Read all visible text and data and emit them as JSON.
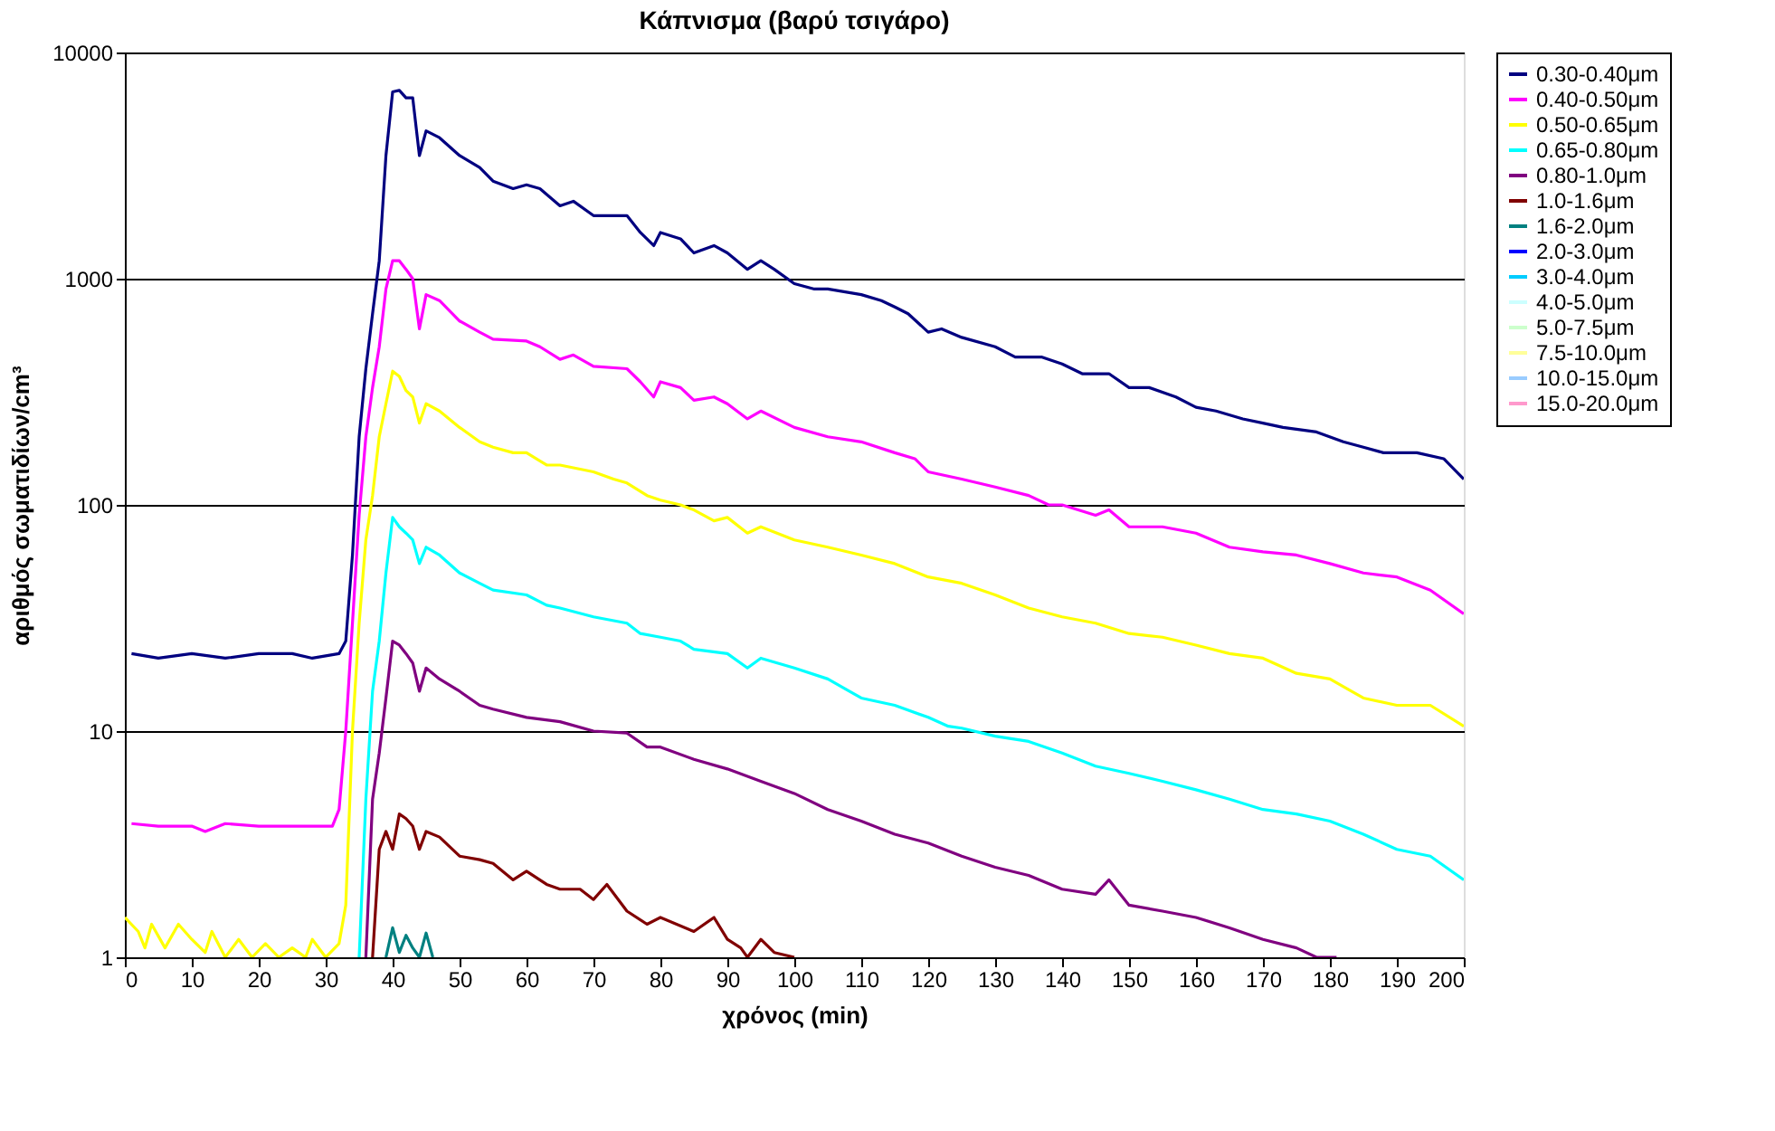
{
  "chart_data": {
    "type": "line",
    "title": "Κάπνισμα (βαρύ τσιγάρο)",
    "xlabel": "χρόνος (min)",
    "ylabel": "αριθμός σωματιδίων/cm³",
    "log": true,
    "grid": "y",
    "legend": "right",
    "line_style": "solid",
    "marker": "none",
    "xlim": [
      0,
      200
    ],
    "xticks": [
      0,
      10,
      20,
      30,
      40,
      50,
      60,
      70,
      80,
      90,
      100,
      110,
      120,
      130,
      140,
      150,
      160,
      170,
      180,
      190,
      200
    ],
    "ylim": [
      1,
      10000
    ],
    "yticks": [
      1,
      10,
      100,
      1000,
      10000
    ],
    "series": [
      {
        "name": "0.30-0.40μm",
        "color": "#000080",
        "x": [
          1,
          5,
          10,
          15,
          20,
          25,
          28,
          32,
          33,
          34,
          35,
          36,
          37,
          38,
          39,
          40,
          41,
          42,
          43,
          44,
          45,
          47,
          50,
          53,
          55,
          58,
          60,
          62,
          65,
          67,
          70,
          72,
          75,
          77,
          79,
          80,
          83,
          85,
          88,
          90,
          93,
          95,
          97,
          100,
          103,
          105,
          110,
          113,
          115,
          117,
          120,
          122,
          125,
          130,
          133,
          137,
          140,
          143,
          147,
          150,
          153,
          157,
          160,
          163,
          167,
          170,
          173,
          178,
          182,
          185,
          188,
          193,
          197,
          200
        ],
        "values": [
          22,
          21,
          22,
          21,
          22,
          22,
          21,
          22,
          25,
          60,
          200,
          400,
          700,
          1200,
          3500,
          6700,
          6800,
          6300,
          6300,
          3500,
          4500,
          4200,
          3500,
          3100,
          2700,
          2500,
          2600,
          2500,
          2100,
          2200,
          1900,
          1900,
          1900,
          1600,
          1400,
          1600,
          1500,
          1300,
          1400,
          1300,
          1100,
          1200,
          1100,
          950,
          900,
          900,
          850,
          800,
          750,
          700,
          580,
          600,
          550,
          500,
          450,
          450,
          420,
          380,
          380,
          330,
          330,
          300,
          270,
          260,
          240,
          230,
          220,
          210,
          190,
          180,
          170,
          170,
          160,
          130
        ]
      },
      {
        "name": "0.40-0.50μm",
        "color": "#ff00ff",
        "x": [
          1,
          5,
          10,
          12,
          15,
          20,
          25,
          31,
          32,
          33,
          34,
          35,
          36,
          37,
          38,
          39,
          40,
          41,
          42,
          43,
          44,
          45,
          47,
          50,
          53,
          55,
          60,
          62,
          65,
          67,
          70,
          75,
          77,
          79,
          80,
          83,
          85,
          88,
          90,
          93,
          95,
          100,
          105,
          110,
          115,
          118,
          120,
          125,
          130,
          135,
          138,
          140,
          145,
          147,
          150,
          155,
          160,
          165,
          170,
          175,
          180,
          185,
          190,
          195,
          200
        ],
        "values": [
          3.9,
          3.8,
          3.8,
          3.6,
          3.9,
          3.8,
          3.8,
          3.8,
          4.5,
          10,
          30,
          90,
          200,
          330,
          500,
          900,
          1200,
          1200,
          1100,
          1000,
          600,
          850,
          800,
          650,
          580,
          540,
          530,
          500,
          440,
          460,
          410,
          400,
          350,
          300,
          350,
          330,
          290,
          300,
          280,
          240,
          260,
          220,
          200,
          190,
          170,
          160,
          140,
          130,
          120,
          110,
          100,
          100,
          90,
          95,
          80,
          80,
          75,
          65,
          62,
          60,
          55,
          50,
          48,
          42,
          33
        ]
      },
      {
        "name": "0.50-0.65μm",
        "color": "#ffff00",
        "x": [
          0,
          2,
          3,
          4,
          6,
          8,
          10,
          12,
          13,
          15,
          17,
          19,
          21,
          23,
          25,
          27,
          28,
          30,
          32,
          33,
          34,
          35,
          36,
          37,
          38,
          39,
          40,
          41,
          42,
          43,
          44,
          45,
          47,
          50,
          53,
          55,
          58,
          60,
          63,
          65,
          70,
          73,
          75,
          78,
          80,
          83,
          85,
          88,
          90,
          93,
          95,
          100,
          105,
          110,
          115,
          120,
          125,
          130,
          135,
          140,
          145,
          150,
          155,
          160,
          165,
          170,
          175,
          180,
          185,
          190,
          195,
          200
        ],
        "values": [
          1.5,
          1.3,
          1.1,
          1.4,
          1.1,
          1.4,
          1.2,
          1.05,
          1.3,
          1.0,
          1.2,
          1.0,
          1.15,
          1.0,
          1.1,
          1.0,
          1.2,
          1.0,
          1.15,
          1.7,
          10,
          30,
          70,
          110,
          200,
          280,
          390,
          370,
          320,
          300,
          230,
          280,
          260,
          220,
          190,
          180,
          170,
          170,
          150,
          150,
          140,
          130,
          125,
          110,
          105,
          100,
          95,
          85,
          88,
          75,
          80,
          70,
          65,
          60,
          55,
          48,
          45,
          40,
          35,
          32,
          30,
          27,
          26,
          24,
          22,
          21,
          18,
          17,
          14,
          13,
          13,
          10.5
        ]
      },
      {
        "name": "0.65-0.80μm",
        "color": "#00ffff",
        "x": [
          35,
          36,
          37,
          38,
          39,
          40,
          41,
          42,
          43,
          44,
          45,
          47,
          50,
          53,
          55,
          60,
          63,
          65,
          70,
          75,
          77,
          80,
          83,
          85,
          90,
          93,
          95,
          100,
          105,
          110,
          115,
          120,
          123,
          125,
          130,
          135,
          140,
          145,
          150,
          155,
          160,
          165,
          170,
          175,
          180,
          185,
          190,
          195,
          200
        ],
        "values": [
          1,
          5,
          15,
          25,
          50,
          88,
          80,
          75,
          70,
          55,
          65,
          60,
          50,
          45,
          42,
          40,
          36,
          35,
          32,
          30,
          27,
          26,
          25,
          23,
          22,
          19,
          21,
          19,
          17,
          14,
          13,
          11.5,
          10.5,
          10.3,
          9.5,
          9,
          8,
          7,
          6.5,
          6,
          5.5,
          5,
          4.5,
          4.3,
          4,
          3.5,
          3,
          2.8,
          2.2
        ]
      },
      {
        "name": "0.80-1.0μm",
        "color": "#800080",
        "x": [
          36,
          37,
          38,
          39,
          40,
          41,
          42,
          43,
          44,
          45,
          47,
          50,
          53,
          55,
          60,
          65,
          70,
          75,
          78,
          80,
          85,
          90,
          95,
          100,
          105,
          110,
          115,
          120,
          125,
          130,
          135,
          140,
          145,
          147,
          150,
          155,
          160,
          165,
          170,
          175,
          178,
          181
        ],
        "values": [
          1,
          5,
          8,
          14,
          25,
          24,
          22,
          20,
          15,
          19,
          17,
          15,
          13,
          12.5,
          11.5,
          11,
          10,
          9.8,
          8.5,
          8.5,
          7.5,
          6.8,
          6,
          5.3,
          4.5,
          4,
          3.5,
          3.2,
          2.8,
          2.5,
          2.3,
          2,
          1.9,
          2.2,
          1.7,
          1.6,
          1.5,
          1.35,
          1.2,
          1.1,
          1.0,
          1.0
        ]
      },
      {
        "name": "1.0-1.6μm",
        "color": "#800000",
        "x": [
          37,
          38,
          39,
          40,
          41,
          42,
          43,
          44,
          45,
          47,
          50,
          53,
          55,
          58,
          60,
          63,
          65,
          68,
          70,
          72,
          75,
          78,
          80,
          85,
          88,
          90,
          92,
          93,
          95,
          97,
          100
        ],
        "values": [
          1,
          3,
          3.6,
          3,
          4.3,
          4.1,
          3.8,
          3,
          3.6,
          3.4,
          2.8,
          2.7,
          2.6,
          2.2,
          2.4,
          2.1,
          2,
          2,
          1.8,
          2.1,
          1.6,
          1.4,
          1.5,
          1.3,
          1.5,
          1.2,
          1.1,
          1.0,
          1.2,
          1.05,
          1.0
        ]
      },
      {
        "name": "1.6-2.0μm",
        "color": "#008080",
        "x": [
          39,
          40,
          41,
          42,
          43,
          44,
          45,
          46
        ],
        "values": [
          1,
          1.35,
          1.05,
          1.25,
          1.1,
          1.0,
          1.28,
          1.0
        ]
      },
      {
        "name": "2.0-3.0μm",
        "color": "#0000ff"
      },
      {
        "name": "3.0-4.0μm",
        "color": "#00ccff"
      },
      {
        "name": "4.0-5.0μm",
        "color": "#ccffff"
      },
      {
        "name": "5.0-7.5μm",
        "color": "#ccffcc"
      },
      {
        "name": "7.5-10.0μm",
        "color": "#ffff99"
      },
      {
        "name": "10.0-15.0μm",
        "color": "#99ccff"
      },
      {
        "name": "15.0-20.0μm",
        "color": "#ff99cc"
      }
    ]
  }
}
